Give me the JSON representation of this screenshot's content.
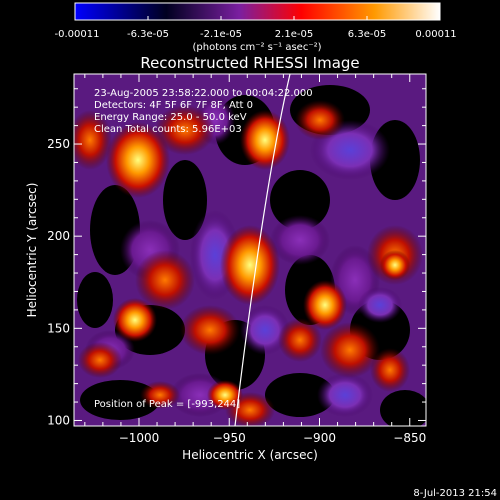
{
  "colorbar": {
    "tick_labels": [
      "-0.00011",
      "-6.3e-05",
      "-2.1e-05",
      "2.1e-05",
      "6.3e-05",
      "0.00011"
    ],
    "unit_label": "(photons cm⁻² s⁻¹ asec⁻²)",
    "colors": [
      "#0000ff",
      "#000000",
      "#7a1fa0",
      "#ff0000",
      "#ff9900",
      "#ffffff"
    ]
  },
  "plot": {
    "title": "Reconstructed RHESSI Image",
    "xlabel": "Heliocentric X (arcsec)",
    "ylabel": "Heliocentric Y (arcsec)",
    "x_ticks": [
      -1000,
      -950,
      -900,
      -850
    ],
    "y_ticks": [
      100,
      150,
      200,
      250
    ],
    "x_tick_labels": [
      "−1000",
      "−950",
      "−900",
      "−850"
    ],
    "y_tick_labels": [
      "100",
      "150",
      "200",
      "250"
    ],
    "xlim": [
      -1036,
      -841
    ],
    "ylim": [
      97,
      288
    ],
    "info_lines": [
      "23-Aug-2005 23:58:22.000 to 00:04:22.000",
      "Detectors: 4F 5F 6F 7F 8F, Att 0",
      "Energy Range: 25.0 - 50.0 keV",
      "Clean    Total counts: 5.96E+03"
    ],
    "peak_label": "Position of Peak = [-993,244]"
  },
  "footer": {
    "timestamp": "8-Jul-2013 21:54"
  }
}
